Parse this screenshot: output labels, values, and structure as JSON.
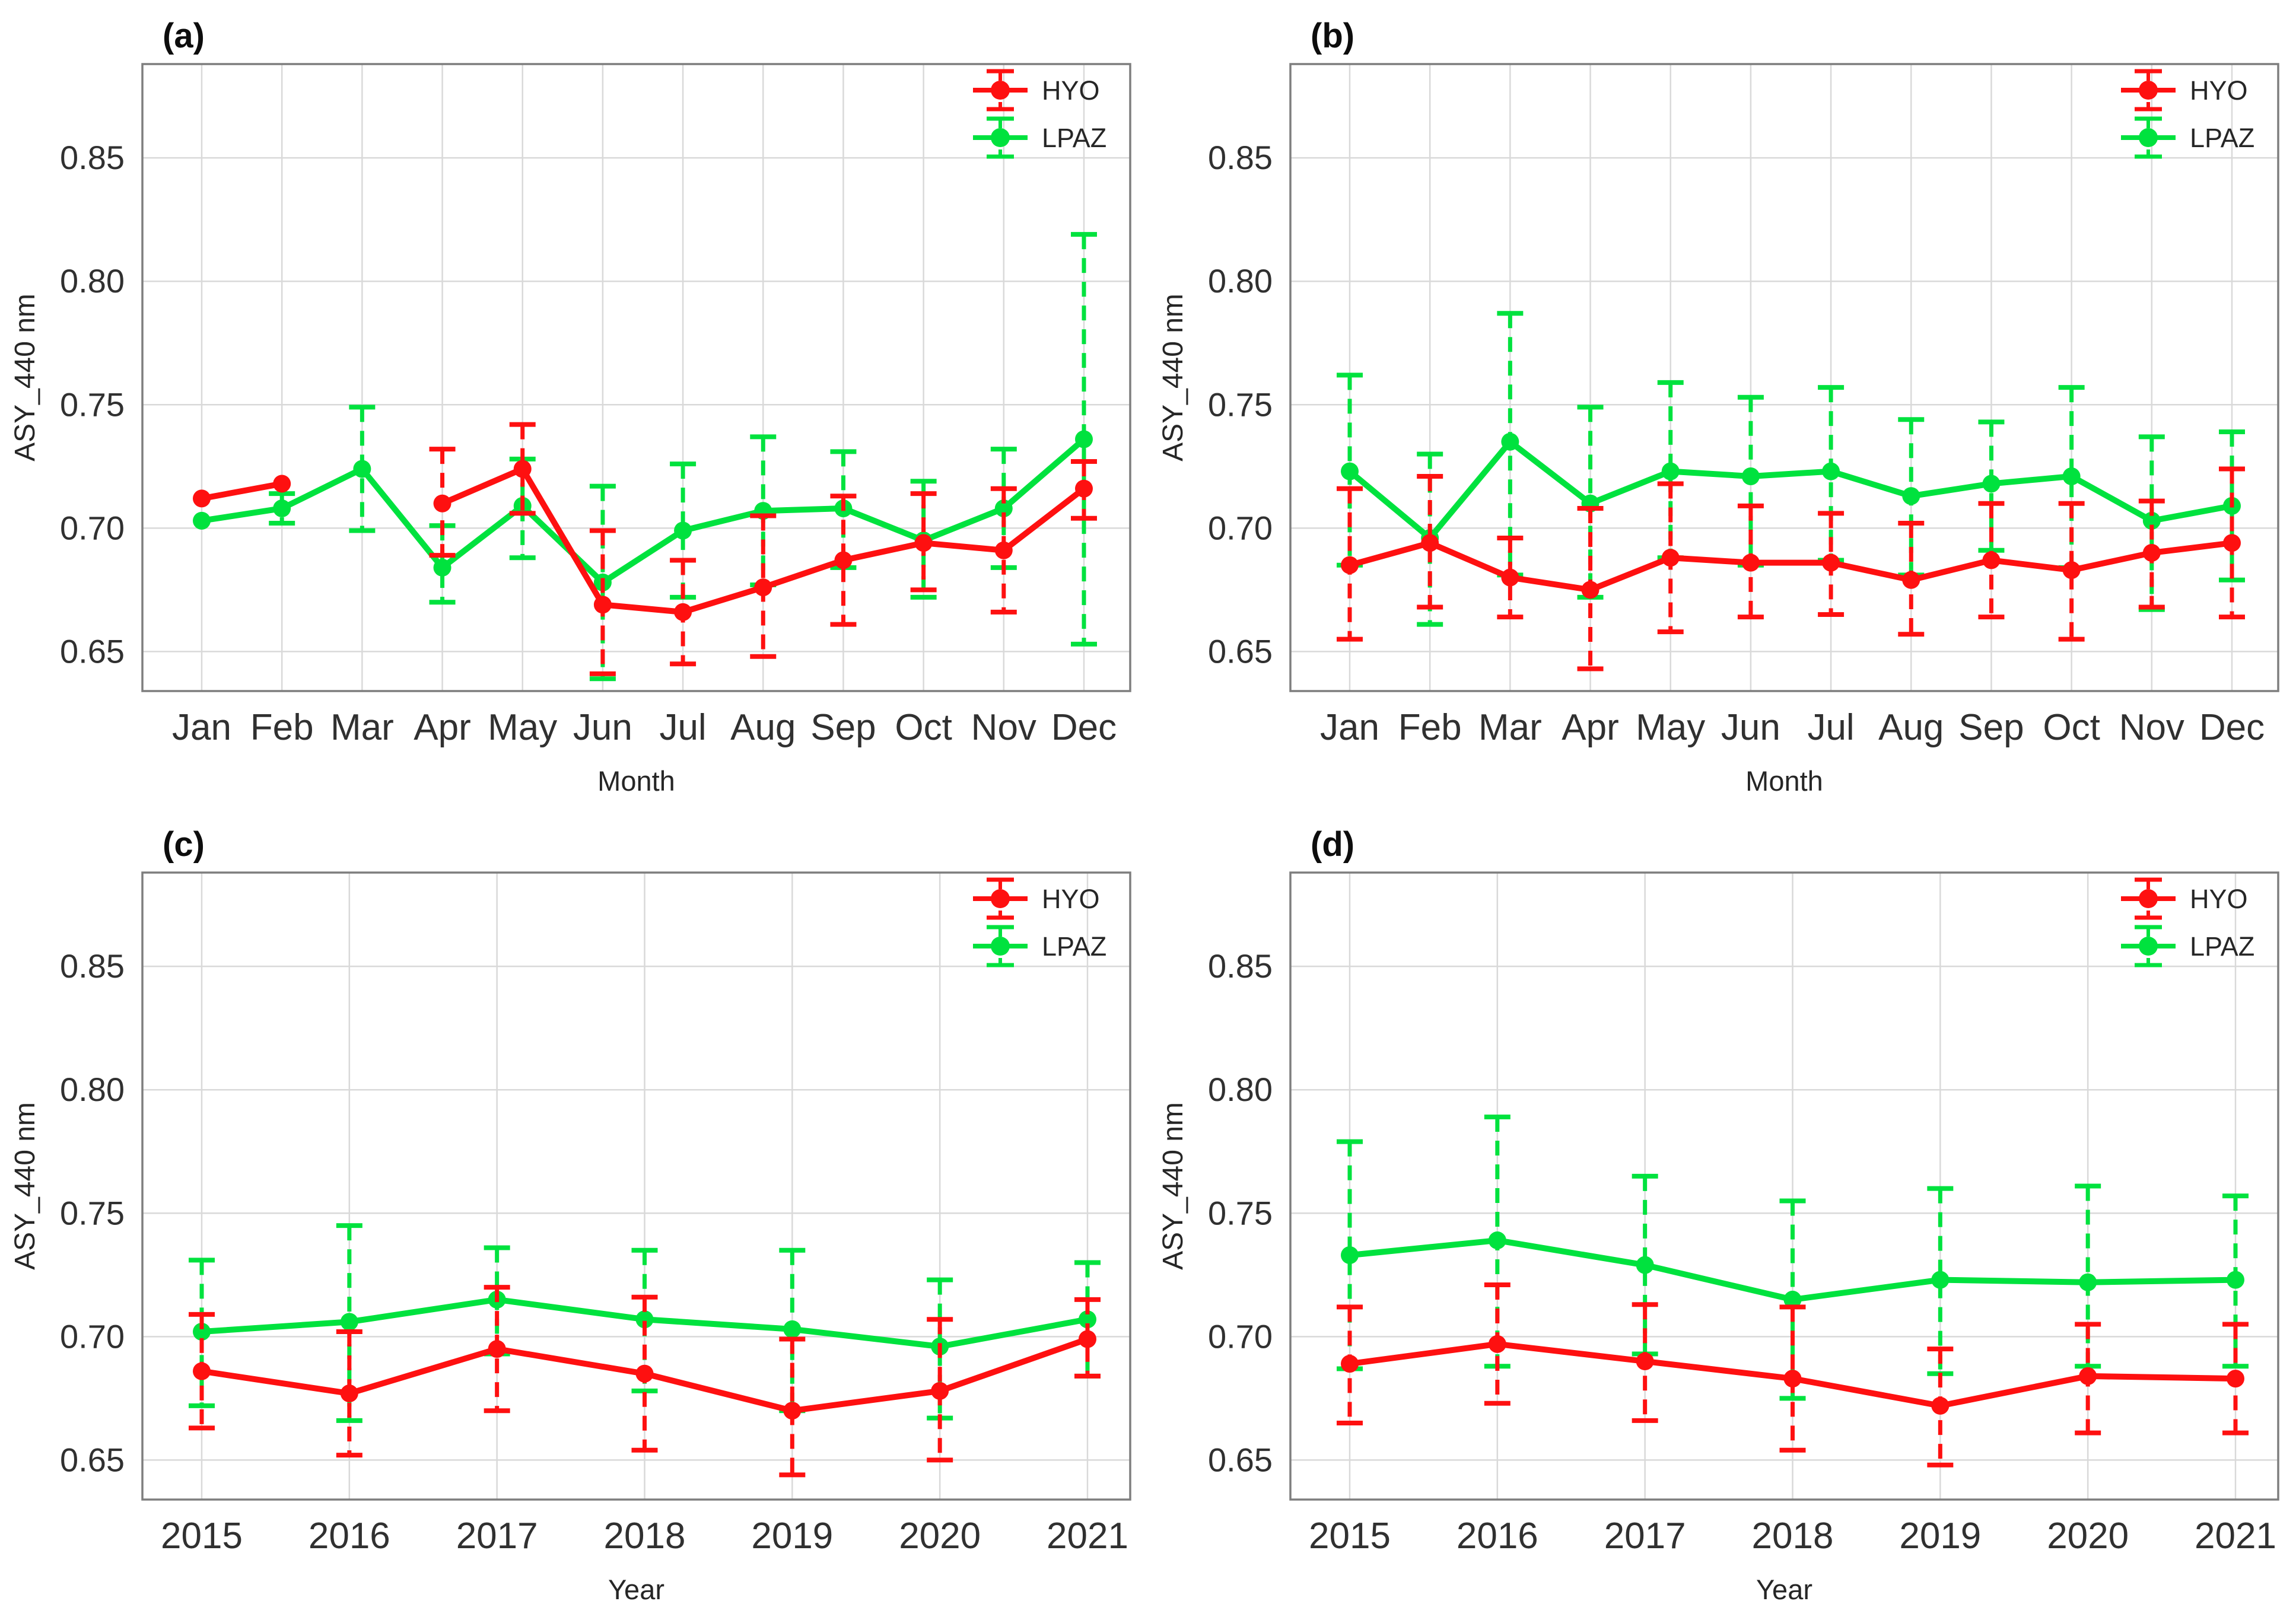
{
  "figure": {
    "background": "#ffffff",
    "axis": {
      "ylabel": "ASY_440 nm",
      "ytick_values": [
        0.65,
        0.7,
        0.75,
        0.8,
        0.85
      ],
      "ytick_labels": [
        "0.65",
        "0.70",
        "0.75",
        "0.80",
        "0.85"
      ],
      "ylim": [
        0.634,
        0.888
      ],
      "grid": true,
      "grid_color": "#d9d9d9",
      "border_color": "#7e7e7e",
      "text_color": "#303030"
    },
    "legend": {
      "position": "top-right",
      "entries": [
        "HYO",
        "LPAZ"
      ]
    },
    "series_colors": {
      "HYO": "#fe1010",
      "LPAZ": "#00e23e"
    }
  },
  "chart_data": [
    {
      "type": "line",
      "panel_label": "(a)",
      "xlabel": "Month",
      "ylabel": "ASY_440 nm",
      "categories": [
        "Jan",
        "Feb",
        "Mar",
        "Apr",
        "May",
        "Jun",
        "Jul",
        "Aug",
        "Sep",
        "Oct",
        "Nov",
        "Dec"
      ],
      "ylim": [
        0.634,
        0.888
      ],
      "yticks": [
        0.65,
        0.7,
        0.75,
        0.8,
        0.85
      ],
      "legend_order": [
        "HYO",
        "LPAZ"
      ],
      "series": [
        {
          "name": "HYO",
          "color": "#fe1010",
          "values": [
            0.712,
            0.718,
            null,
            0.71,
            0.724,
            0.669,
            0.666,
            0.676,
            0.687,
            0.694,
            0.691,
            0.716
          ],
          "err_low": [
            null,
            null,
            null,
            0.689,
            0.706,
            0.641,
            0.645,
            0.648,
            0.661,
            0.675,
            0.666,
            0.704
          ],
          "err_high": [
            null,
            null,
            null,
            0.732,
            0.742,
            0.699,
            0.687,
            0.705,
            0.713,
            0.714,
            0.716,
            0.727
          ]
        },
        {
          "name": "LPAZ",
          "color": "#00e23e",
          "values": [
            0.703,
            0.708,
            0.724,
            0.684,
            0.709,
            0.678,
            0.699,
            0.707,
            0.708,
            0.695,
            0.708,
            0.736
          ],
          "err_low": [
            null,
            0.702,
            0.699,
            0.67,
            0.688,
            0.639,
            0.672,
            0.677,
            0.684,
            0.672,
            0.684,
            0.653
          ],
          "err_high": [
            null,
            0.714,
            0.749,
            0.701,
            0.728,
            0.717,
            0.726,
            0.737,
            0.731,
            0.719,
            0.732,
            0.819
          ]
        }
      ]
    },
    {
      "type": "line",
      "panel_label": "(b)",
      "xlabel": "Month",
      "ylabel": "ASY_440 nm",
      "categories": [
        "Jan",
        "Feb",
        "Mar",
        "Apr",
        "May",
        "Jun",
        "Jul",
        "Aug",
        "Sep",
        "Oct",
        "Nov",
        "Dec"
      ],
      "ylim": [
        0.634,
        0.888
      ],
      "yticks": [
        0.65,
        0.7,
        0.75,
        0.8,
        0.85
      ],
      "legend_order": [
        "HYO",
        "LPAZ"
      ],
      "series": [
        {
          "name": "HYO",
          "color": "#fe1010",
          "values": [
            0.685,
            0.694,
            0.68,
            0.675,
            0.688,
            0.686,
            0.686,
            0.679,
            0.687,
            0.683,
            0.69,
            0.694
          ],
          "err_low": [
            0.655,
            0.668,
            0.664,
            0.643,
            0.658,
            0.664,
            0.665,
            0.657,
            0.664,
            0.655,
            0.668,
            0.664
          ],
          "err_high": [
            0.716,
            0.721,
            0.696,
            0.708,
            0.718,
            0.709,
            0.706,
            0.702,
            0.71,
            0.71,
            0.711,
            0.724
          ]
        },
        {
          "name": "LPAZ",
          "color": "#00e23e",
          "values": [
            0.723,
            0.696,
            0.735,
            0.71,
            0.723,
            0.721,
            0.723,
            0.713,
            0.718,
            0.721,
            0.703,
            0.709
          ],
          "err_low": [
            0.685,
            0.661,
            0.681,
            0.672,
            0.688,
            0.685,
            0.687,
            0.681,
            0.691,
            0.684,
            0.667,
            0.679
          ],
          "err_high": [
            0.762,
            0.73,
            0.787,
            0.749,
            0.759,
            0.753,
            0.757,
            0.744,
            0.743,
            0.757,
            0.737,
            0.739
          ]
        }
      ]
    },
    {
      "type": "line",
      "panel_label": "(c)",
      "xlabel": "Year",
      "ylabel": "ASY_440 nm",
      "categories": [
        "2015",
        "2016",
        "2017",
        "2018",
        "2019",
        "2020",
        "2021"
      ],
      "ylim": [
        0.634,
        0.888
      ],
      "yticks": [
        0.65,
        0.7,
        0.75,
        0.8,
        0.85
      ],
      "legend_order": [
        "HYO",
        "LPAZ"
      ],
      "series": [
        {
          "name": "HYO",
          "color": "#fe1010",
          "values": [
            0.686,
            0.677,
            0.695,
            0.685,
            0.67,
            0.678,
            0.699
          ],
          "err_low": [
            0.663,
            0.652,
            0.67,
            0.654,
            0.644,
            0.65,
            0.684
          ],
          "err_high": [
            0.709,
            0.702,
            0.72,
            0.716,
            0.699,
            0.707,
            0.715
          ]
        },
        {
          "name": "LPAZ",
          "color": "#00e23e",
          "values": [
            0.702,
            0.706,
            0.715,
            0.707,
            0.703,
            0.696,
            0.707
          ],
          "err_low": [
            0.672,
            0.666,
            0.693,
            0.678,
            0.67,
            0.667,
            0.684
          ],
          "err_high": [
            0.731,
            0.745,
            0.736,
            0.735,
            0.735,
            0.723,
            0.73
          ]
        }
      ]
    },
    {
      "type": "line",
      "panel_label": "(d)",
      "xlabel": "Year",
      "ylabel": "ASY_440 nm",
      "categories": [
        "2015",
        "2016",
        "2017",
        "2018",
        "2019",
        "2020",
        "2021"
      ],
      "ylim": [
        0.634,
        0.888
      ],
      "yticks": [
        0.65,
        0.7,
        0.75,
        0.8,
        0.85
      ],
      "legend_order": [
        "HYO",
        "LPAZ"
      ],
      "series": [
        {
          "name": "HYO",
          "color": "#fe1010",
          "values": [
            0.689,
            0.697,
            0.69,
            0.683,
            0.672,
            0.684,
            0.683
          ],
          "err_low": [
            0.665,
            0.673,
            0.666,
            0.654,
            0.648,
            0.661,
            0.661
          ],
          "err_high": [
            0.712,
            0.721,
            0.713,
            0.712,
            0.695,
            0.705,
            0.705
          ]
        },
        {
          "name": "LPAZ",
          "color": "#00e23e",
          "values": [
            0.733,
            0.739,
            0.729,
            0.715,
            0.723,
            0.722,
            0.723
          ],
          "err_low": [
            0.687,
            0.688,
            0.693,
            0.675,
            0.685,
            0.688,
            0.688
          ],
          "err_high": [
            0.779,
            0.789,
            0.765,
            0.755,
            0.76,
            0.761,
            0.757
          ]
        }
      ]
    }
  ]
}
